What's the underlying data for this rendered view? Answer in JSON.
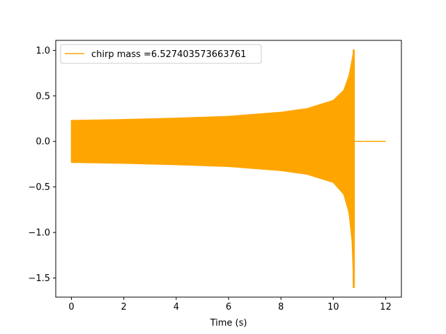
{
  "chart_data": {
    "type": "line",
    "title": "",
    "xlabel": "Time (s)",
    "ylabel": "",
    "xlim": [
      -0.6,
      12.6
    ],
    "ylim": [
      -1.71,
      1.11
    ],
    "x_ticks": [
      0,
      2,
      4,
      6,
      8,
      10,
      12
    ],
    "x_tick_labels": [
      "0",
      "2",
      "4",
      "6",
      "8",
      "10",
      "12"
    ],
    "y_ticks": [
      -1.5,
      -1.0,
      -0.5,
      0.0,
      0.5,
      1.0
    ],
    "y_tick_labels": [
      "−1.5",
      "−1.0",
      "−0.5",
      "0.0",
      "0.5",
      "1.0"
    ],
    "grid": false,
    "legend_position": "upper-left",
    "series": [
      {
        "name": "chirp mass =6.527403573663761",
        "color": "#ffa500",
        "signal": "chirp",
        "start_time": 0.0,
        "merger_time": 10.78,
        "end_time": 12.0,
        "envelope": [
          {
            "t": 0.0,
            "upper": 0.23,
            "lower": -0.23
          },
          {
            "t": 2.0,
            "upper": 0.24,
            "lower": -0.24
          },
          {
            "t": 4.0,
            "upper": 0.255,
            "lower": -0.255
          },
          {
            "t": 6.0,
            "upper": 0.275,
            "lower": -0.275
          },
          {
            "t": 8.0,
            "upper": 0.32,
            "lower": -0.32
          },
          {
            "t": 9.0,
            "upper": 0.36,
            "lower": -0.36
          },
          {
            "t": 10.0,
            "upper": 0.45,
            "lower": -0.45
          },
          {
            "t": 10.4,
            "upper": 0.56,
            "lower": -0.58
          },
          {
            "t": 10.6,
            "upper": 0.72,
            "lower": -0.78
          },
          {
            "t": 10.72,
            "upper": 0.9,
            "lower": -1.1
          },
          {
            "t": 10.78,
            "upper": 1.0,
            "lower": -1.6
          }
        ],
        "post_merger_value": 0.0
      }
    ]
  }
}
